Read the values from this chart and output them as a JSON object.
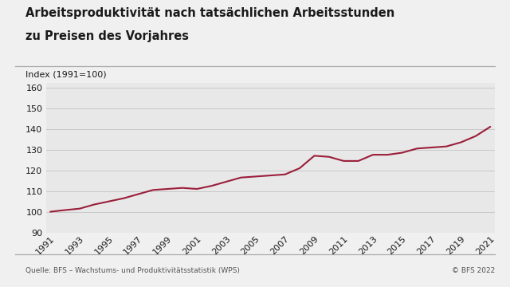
{
  "title_line1": "Arbeitsproduktivität nach tatsächlichen Arbeitsstunden",
  "title_line2": "zu Preisen des Vorjahres",
  "ylabel": "Index (1991=100)",
  "source": "Quelle: BFS – Wachstums- und Produktivitätsstatistik (WPS)",
  "copyright": "© BFS 2022",
  "line_color": "#9b1e3a",
  "bg_color": "#e8e8e8",
  "outer_bg": "#f0f0f0",
  "separator_color": "#aaaaaa",
  "ylim": [
    90,
    162
  ],
  "yticks": [
    90,
    100,
    110,
    120,
    130,
    140,
    150,
    160
  ],
  "years": [
    1991,
    1992,
    1993,
    1994,
    1995,
    1996,
    1997,
    1998,
    1999,
    2000,
    2001,
    2002,
    2003,
    2004,
    2005,
    2006,
    2007,
    2008,
    2009,
    2010,
    2011,
    2012,
    2013,
    2014,
    2015,
    2016,
    2017,
    2018,
    2019,
    2020,
    2021
  ],
  "values": [
    100.0,
    100.8,
    101.5,
    103.5,
    105.0,
    106.5,
    108.5,
    110.5,
    111.0,
    111.5,
    111.0,
    112.5,
    114.5,
    116.5,
    117.0,
    117.5,
    118.0,
    121.0,
    127.0,
    126.5,
    124.5,
    124.5,
    127.5,
    127.5,
    128.5,
    130.5,
    131.0,
    131.5,
    133.5,
    136.5,
    141.0
  ],
  "xtick_years": [
    1991,
    1993,
    1995,
    1997,
    1999,
    2001,
    2003,
    2005,
    2007,
    2009,
    2011,
    2013,
    2015,
    2017,
    2019,
    2021
  ],
  "title_fontsize": 10.5,
  "tick_fontsize": 8,
  "label_fontsize": 8,
  "source_fontsize": 6.5
}
